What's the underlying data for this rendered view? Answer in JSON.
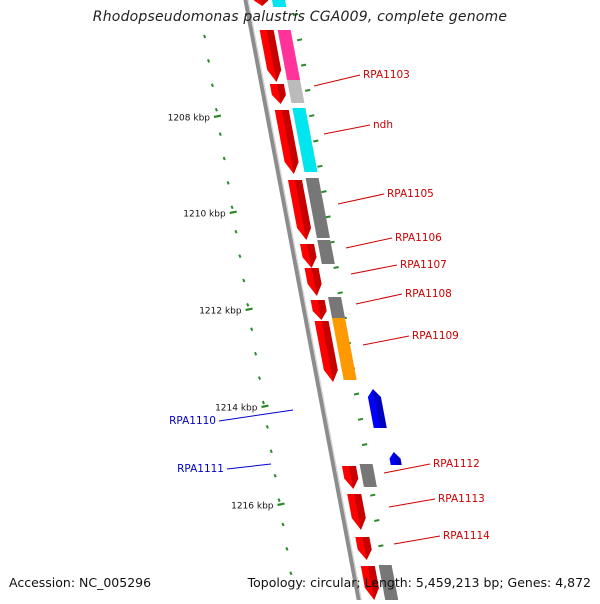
{
  "title": "Rhodopseudomonas palustris CGA009, complete genome",
  "footer": {
    "accession": "Accession: NC_005296",
    "summary": "Topology: circular; Length: 5,459,213 bp; Genes: 4,872"
  },
  "colors": {
    "backbone": "#8c8c8c",
    "forward_gene": "#ff0000",
    "blue_gene": "#0000ff",
    "tick": "#2a8a2a",
    "label_red": "#cc0000",
    "label_blue": "#0000cc",
    "cog": {
      "pink": "#ff3399",
      "grey": "#777777",
      "lightgrey": "#bbbbbb",
      "cyan": "#00e5ee",
      "orange": "#ff9900"
    }
  },
  "scale_labels": [
    "1208 kbp",
    "1210 kbp",
    "1212 kbp",
    "1214 kbp",
    "1216 kbp"
  ],
  "genes": [
    {
      "label": "RPA1103",
      "color": "red"
    },
    {
      "label": "ndh",
      "color": "red"
    },
    {
      "label": "RPA1105",
      "color": "red"
    },
    {
      "label": "RPA1106",
      "color": "red"
    },
    {
      "label": "RPA1107",
      "color": "red"
    },
    {
      "label": "RPA1108",
      "color": "red"
    },
    {
      "label": "RPA1109",
      "color": "red"
    },
    {
      "label": "RPA1110",
      "color": "blue"
    },
    {
      "label": "RPA1111",
      "color": "blue"
    },
    {
      "label": "RPA1112",
      "color": "red"
    },
    {
      "label": "RPA1113",
      "color": "red"
    },
    {
      "label": "RPA1114",
      "color": "red"
    }
  ]
}
